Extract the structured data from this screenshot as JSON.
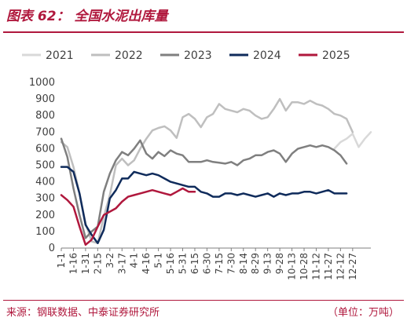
{
  "header": {
    "title": "图表 62：  全国水泥出库量"
  },
  "footer": {
    "source": "来源：钢联数据、中泰证券研究所",
    "unit": "（单位：万吨）"
  },
  "chart_data": {
    "type": "line",
    "title": "图表 62：  全国水泥出库量",
    "xlabel": "",
    "ylabel": "",
    "ylim": [
      0,
      1000
    ],
    "yticks": [
      0,
      100,
      200,
      300,
      400,
      500,
      600,
      700,
      800,
      900,
      1000
    ],
    "grid": false,
    "legend_position": "top",
    "x_count": 52,
    "x_tick_labels": [
      "1-1",
      "1-16",
      "1-31",
      "2-15",
      "3-2",
      "3-17",
      "4-1",
      "4-16",
      "5-1",
      "5-16",
      "5-31",
      "6-15",
      "6-30",
      "7-15",
      "7-30",
      "8-14",
      "8-29",
      "9-13",
      "9-28",
      "10-13",
      "10-28",
      "11-12",
      "11-27",
      "12-12",
      "12-27"
    ],
    "series": [
      {
        "name": "2021",
        "color": "#d9d9d9",
        "values": [
          null,
          null,
          null,
          null,
          null,
          null,
          null,
          null,
          null,
          null,
          null,
          null,
          null,
          null,
          null,
          null,
          null,
          null,
          null,
          null,
          null,
          null,
          null,
          null,
          null,
          null,
          null,
          null,
          null,
          null,
          null,
          null,
          null,
          null,
          null,
          null,
          null,
          null,
          null,
          null,
          null,
          null,
          null,
          null,
          null,
          600,
          640,
          660,
          690,
          610,
          660,
          700
        ]
      },
      {
        "name": "2022",
        "color": "#bfbfbf",
        "values": [
          640,
          610,
          490,
          330,
          150,
          40,
          30,
          190,
          320,
          500,
          540,
          500,
          530,
          600,
          660,
          710,
          725,
          735,
          710,
          665,
          790,
          810,
          780,
          730,
          790,
          810,
          870,
          840,
          830,
          820,
          840,
          830,
          800,
          780,
          790,
          840,
          900,
          830,
          880,
          880,
          870,
          890,
          870,
          860,
          840,
          810,
          800,
          780,
          700,
          null,
          null,
          null
        ]
      },
      {
        "name": "2023",
        "color": "#7f7f7f",
        "values": [
          660,
          550,
          360,
          200,
          60,
          100,
          130,
          340,
          450,
          530,
          580,
          560,
          600,
          650,
          570,
          540,
          580,
          555,
          590,
          570,
          560,
          520,
          520,
          520,
          530,
          520,
          515,
          510,
          520,
          500,
          530,
          540,
          560,
          560,
          580,
          590,
          570,
          520,
          570,
          600,
          610,
          620,
          610,
          620,
          610,
          590,
          560,
          510,
          null,
          null,
          null,
          null
        ]
      },
      {
        "name": "2024",
        "color": "#0f2b5b",
        "values": [
          490,
          490,
          460,
          330,
          140,
          80,
          30,
          110,
          300,
          350,
          420,
          420,
          460,
          450,
          440,
          450,
          440,
          420,
          400,
          390,
          380,
          370,
          370,
          340,
          330,
          310,
          310,
          330,
          330,
          320,
          330,
          320,
          310,
          320,
          330,
          310,
          330,
          320,
          330,
          330,
          340,
          340,
          330,
          340,
          350,
          330,
          330,
          330,
          null,
          null,
          null,
          null
        ]
      },
      {
        "name": "2025",
        "color": "#b0183d",
        "values": [
          320,
          290,
          250,
          130,
          20,
          50,
          130,
          200,
          220,
          240,
          280,
          310,
          320,
          330,
          340,
          350,
          340,
          330,
          320,
          340,
          360,
          340,
          340,
          null,
          null,
          null,
          null,
          null,
          null,
          null,
          null,
          null,
          null,
          null,
          null,
          null,
          null,
          null,
          null,
          null,
          null,
          null,
          null,
          null,
          null,
          null,
          null,
          null,
          null,
          null,
          null,
          null
        ]
      }
    ]
  }
}
